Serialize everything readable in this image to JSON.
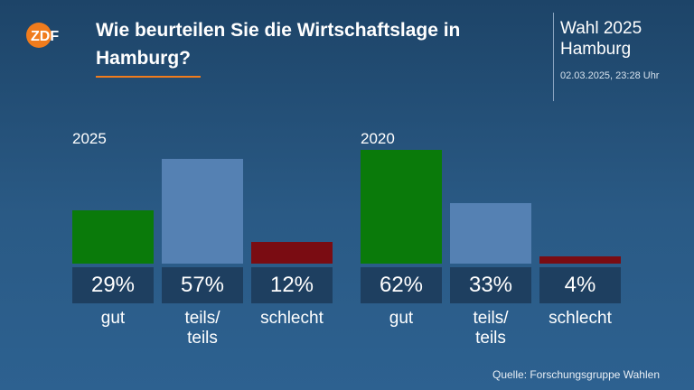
{
  "header": {
    "logo_text": "ZDF",
    "title": "Wie beurteilen Sie die Wirtschaftslage in Hamburg?",
    "election": "Wahl 2025 Hamburg",
    "timestamp": "02.03.2025, 23:28 Uhr"
  },
  "colors": {
    "gut": "#0a7a0a",
    "teils": "#5581b3",
    "schlecht": "#7a0c12",
    "accent": "#f07c1d"
  },
  "chart_data": {
    "type": "bar",
    "unit": "%",
    "ylim": [
      0,
      62
    ],
    "groups": [
      {
        "label": "2025",
        "bars": [
          {
            "category": "gut",
            "value": 29,
            "value_label": "29%"
          },
          {
            "category": "teils/\nteils",
            "value": 57,
            "value_label": "57%"
          },
          {
            "category": "schlecht",
            "value": 12,
            "value_label": "12%"
          }
        ]
      },
      {
        "label": "2020",
        "bars": [
          {
            "category": "gut",
            "value": 62,
            "value_label": "62%"
          },
          {
            "category": "teils/\nteils",
            "value": 33,
            "value_label": "33%"
          },
          {
            "category": "schlecht",
            "value": 4,
            "value_label": "4%"
          }
        ]
      }
    ]
  },
  "footer": {
    "source": "Quelle: Forschungsgruppe Wahlen"
  }
}
